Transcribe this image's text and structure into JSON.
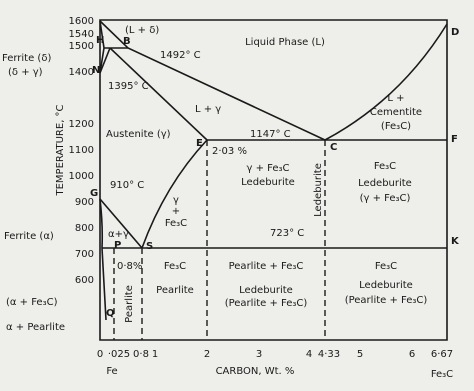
{
  "axes": {
    "y_label": "TEMPERATURE, °C",
    "x_label": "CARBON, Wt. %",
    "y_ticks": [
      "1600",
      "1540",
      "1500",
      "1400",
      "1200",
      "1100",
      "1000",
      "900",
      "800",
      "700",
      "600"
    ],
    "x_ticks": [
      "0",
      "·025",
      "0·8",
      "1",
      "2",
      "3",
      "4",
      "4·33",
      "5",
      "6",
      "6·67"
    ],
    "x_start": "Fe",
    "x_end": "Fe₃C"
  },
  "points": [
    "H",
    "B",
    "N",
    "G",
    "P",
    "S",
    "E",
    "C",
    "D",
    "F",
    "K",
    "Q"
  ],
  "labels": {
    "liquid": "Liquid Phase (L)",
    "l_delta": "(L + δ)",
    "ferrite_delta": "Ferrite (δ)",
    "delta_gamma": "(δ + γ)",
    "t1492": "1492° C",
    "t1395": "1395° C",
    "l_gamma": "L + γ",
    "l_cem_1": "L +",
    "l_cem_2": "Cementite",
    "l_cem_3": "(Fe₃C)",
    "austenite": "Austenite (γ)",
    "t1147": "1147° C",
    "c203": "2·03 %",
    "led_1": "γ + Fe₃C",
    "led_2": "Ledeburite",
    "fl_1": "Fe₃C",
    "fl_2": "Ledeburite",
    "fl_3": "(γ + Fe₃C)",
    "t910": "910° C",
    "gf_1": "γ",
    "gf_2": "+",
    "gf_3": "Fe₃C",
    "t723": "723° C",
    "ferrite_alpha": "Ferrite (α)",
    "alpha_gamma": "α+γ",
    "c08": "0·8%",
    "pf_1": "Fe₃C",
    "pf_2": "Pearlite",
    "lp_1": "Pearlite + Fe₃C",
    "lp_2": "Ledeburite",
    "lp_3": "(Pearlite + Fe₃C)",
    "fr_1": "Fe₃C",
    "fr_2": "Ledeburite",
    "fr_3": "(Pearlite + Fe₃C)",
    "alpha_fe3c": "(α + Fe₃C)",
    "alpha_pearlite": "α + Pearlite",
    "pearlite_v": "Pearlite",
    "ledeburite_v": "Ledeburite"
  }
}
